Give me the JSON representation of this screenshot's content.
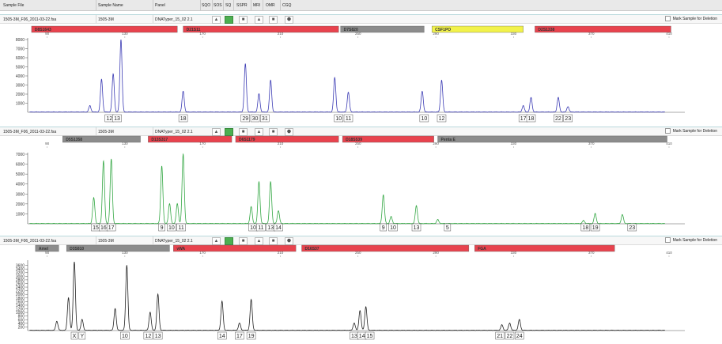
{
  "header": {
    "columns": [
      "Sample File",
      "Sample Name",
      "Panel",
      "SQO",
      "SOS",
      "SQ",
      "SSPR",
      "MRI",
      "OMR",
      "CGQ"
    ]
  },
  "mark_label": "Mark Sample for Deletion",
  "panels": [
    {
      "sample_file": "1505-3M_F06_2011-03-22.fsa",
      "sample_name": "1505-3M",
      "panel": "DNATyper_15_02 2.1"
    },
    {
      "sample_file": "1505-3M_F06_2011-03-22.fsa",
      "sample_name": "1505-3M",
      "panel": "DNATyper_15_02 2.1"
    },
    {
      "sample_file": "1505-3M_F06_2011-03-22.fsa",
      "sample_name": "1505-3M",
      "panel": "DNATyper_15_02 2.1"
    }
  ],
  "chart_data": [
    {
      "type": "line",
      "color": "#3d3db5",
      "xlim": [
        80,
        410
      ],
      "x_ticks": [
        90,
        130,
        170,
        210,
        250,
        290,
        330,
        370,
        410
      ],
      "ylim": [
        0,
        8000
      ],
      "y_ticks": [
        1000,
        2000,
        3000,
        4000,
        5000,
        6000,
        7000,
        8000
      ],
      "markers": [
        {
          "name": "D8S1643",
          "start": 82,
          "end": 157,
          "color": "#e8434e"
        },
        {
          "name": "D21S11",
          "start": 160,
          "end": 240,
          "color": "#e8434e"
        },
        {
          "name": "D7S820",
          "start": 241,
          "end": 284,
          "color": "#8c8c8c"
        },
        {
          "name": "CSF1PO",
          "start": 288,
          "end": 335,
          "color": "#f2f24a"
        },
        {
          "name": "D2S1338",
          "start": 341,
          "end": 411,
          "color": "#e8434e"
        }
      ],
      "peaks": [
        [
          112,
          700
        ],
        [
          118,
          3600
        ],
        [
          124,
          4200
        ],
        [
          128,
          8000
        ],
        [
          160,
          2300
        ],
        [
          192,
          5300
        ],
        [
          199,
          2000
        ],
        [
          205,
          3500
        ],
        [
          238,
          3800
        ],
        [
          245,
          2200
        ],
        [
          283,
          2300
        ],
        [
          293,
          3500
        ],
        [
          335,
          700
        ],
        [
          339,
          1600
        ],
        [
          353,
          1600
        ],
        [
          358,
          600
        ]
      ],
      "alleles": [
        {
          "x": 122,
          "label": "12"
        },
        {
          "x": 126,
          "label": "13"
        },
        {
          "x": 160,
          "label": "18"
        },
        {
          "x": 192,
          "label": "29"
        },
        {
          "x": 197,
          "label": "30"
        },
        {
          "x": 202,
          "label": "31"
        },
        {
          "x": 240,
          "label": "10"
        },
        {
          "x": 245,
          "label": "11"
        },
        {
          "x": 284,
          "label": "10"
        },
        {
          "x": 293,
          "label": "12"
        },
        {
          "x": 335,
          "label": "17"
        },
        {
          "x": 339,
          "label": "18"
        },
        {
          "x": 353,
          "label": "22"
        },
        {
          "x": 358,
          "label": "23"
        }
      ]
    },
    {
      "type": "line",
      "color": "#35a845",
      "xlim": [
        80,
        410
      ],
      "x_ticks": [
        90,
        130,
        170,
        210,
        250,
        290,
        330,
        370,
        410
      ],
      "ylim": [
        0,
        7000
      ],
      "y_ticks": [
        1000,
        2000,
        3000,
        4000,
        5000,
        6000,
        7000
      ],
      "markers": [
        {
          "name": "D5S1358",
          "start": 98,
          "end": 138,
          "color": "#8c8c8c"
        },
        {
          "name": "D13S317",
          "start": 142,
          "end": 185,
          "color": "#e8434e"
        },
        {
          "name": "D6S1179",
          "start": 187,
          "end": 240,
          "color": "#e8434e"
        },
        {
          "name": "D18S539",
          "start": 242,
          "end": 289,
          "color": "#e8434e"
        },
        {
          "name": "Penta E",
          "start": 291,
          "end": 409,
          "color": "#8c8c8c"
        }
      ],
      "peaks": [
        [
          114,
          2600
        ],
        [
          119,
          6300
        ],
        [
          123,
          6500
        ],
        [
          149,
          5800
        ],
        [
          153,
          2000
        ],
        [
          157,
          2000
        ],
        [
          160,
          7000
        ],
        [
          195,
          1700
        ],
        [
          199,
          4200
        ],
        [
          205,
          4200
        ],
        [
          209,
          1300
        ],
        [
          263,
          2900
        ],
        [
          267,
          700
        ],
        [
          280,
          1800
        ],
        [
          291,
          400
        ],
        [
          366,
          300
        ],
        [
          372,
          1000
        ],
        [
          386,
          900
        ]
      ],
      "alleles": [
        {
          "x": 115,
          "label": "15"
        },
        {
          "x": 119,
          "label": "16"
        },
        {
          "x": 123,
          "label": "17"
        },
        {
          "x": 149,
          "label": "9"
        },
        {
          "x": 154,
          "label": "10"
        },
        {
          "x": 159,
          "label": "11"
        },
        {
          "x": 196,
          "label": "10"
        },
        {
          "x": 200,
          "label": "11"
        },
        {
          "x": 205,
          "label": "13"
        },
        {
          "x": 209,
          "label": "14"
        },
        {
          "x": 263,
          "label": "9"
        },
        {
          "x": 268,
          "label": "10"
        },
        {
          "x": 280,
          "label": "13"
        },
        {
          "x": 296,
          "label": "5"
        },
        {
          "x": 367,
          "label": "18"
        },
        {
          "x": 372,
          "label": "19"
        },
        {
          "x": 391,
          "label": "23"
        }
      ]
    },
    {
      "type": "line",
      "color": "#222222",
      "xlim": [
        80,
        410
      ],
      "x_ticks": [
        90,
        130,
        170,
        210,
        250,
        290,
        330,
        370,
        410
      ],
      "ylim": [
        0,
        3800
      ],
      "y_ticks": [
        200,
        400,
        600,
        800,
        1000,
        1200,
        1400,
        1600,
        1800,
        2000,
        2200,
        2400,
        2600,
        2800,
        3000,
        3200,
        3400,
        3600
      ],
      "markers": [
        {
          "name": "Amel",
          "start": 84,
          "end": 96,
          "color": "#8c8c8c"
        },
        {
          "name": "D3S810",
          "start": 100,
          "end": 153,
          "color": "#8c8c8c"
        },
        {
          "name": "vWA",
          "start": 155,
          "end": 218,
          "color": "#e8434e"
        },
        {
          "name": "D16S37",
          "start": 221,
          "end": 307,
          "color": "#e8434e"
        },
        {
          "name": "FGA",
          "start": 310,
          "end": 382,
          "color": "#e8434e"
        }
      ],
      "peaks": [
        [
          95,
          500
        ],
        [
          101,
          1800
        ],
        [
          104,
          3800
        ],
        [
          108,
          600
        ],
        [
          125,
          1200
        ],
        [
          131,
          3600
        ],
        [
          143,
          1000
        ],
        [
          147,
          2000
        ],
        [
          180,
          1600
        ],
        [
          189,
          400
        ],
        [
          195,
          1700
        ],
        [
          248,
          400
        ],
        [
          251,
          1100
        ],
        [
          254,
          1300
        ],
        [
          324,
          300
        ],
        [
          328,
          400
        ],
        [
          333,
          600
        ]
      ],
      "alleles": [
        {
          "x": 104,
          "label": "X"
        },
        {
          "x": 108,
          "label": "Y"
        },
        {
          "x": 130,
          "label": "10"
        },
        {
          "x": 142,
          "label": "12"
        },
        {
          "x": 147,
          "label": "13"
        },
        {
          "x": 180,
          "label": "14"
        },
        {
          "x": 189,
          "label": "17"
        },
        {
          "x": 195,
          "label": "19"
        },
        {
          "x": 248,
          "label": "13"
        },
        {
          "x": 252,
          "label": "14"
        },
        {
          "x": 256,
          "label": "15"
        },
        {
          "x": 323,
          "label": "21"
        },
        {
          "x": 328,
          "label": "22"
        },
        {
          "x": 333,
          "label": "24"
        }
      ]
    }
  ]
}
